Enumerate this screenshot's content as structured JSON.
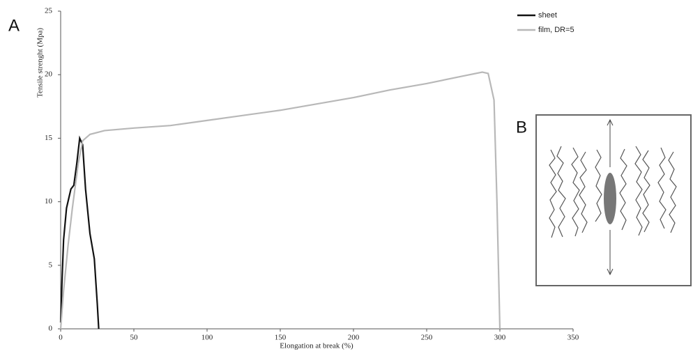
{
  "panel_a": "A",
  "panel_b": "B",
  "chart_data": {
    "type": "line",
    "x_label": "Elongation at break (%)",
    "y_label": "Tensile strenght (Mpa)",
    "xlim": [
      0,
      350
    ],
    "xticks": [
      0,
      50,
      100,
      150,
      200,
      250,
      300,
      350
    ],
    "ylim": [
      0,
      25
    ],
    "yticks": [
      0,
      5,
      10,
      15,
      20,
      25
    ],
    "legend": "top-right",
    "series": [
      {
        "name": "sheet",
        "color": "#111111",
        "x": [
          0,
          1,
          2,
          4,
          7,
          9,
          11,
          13,
          15,
          17,
          20,
          23,
          25,
          26
        ],
        "values": [
          0.5,
          4,
          7,
          9.5,
          11,
          11.3,
          13,
          15,
          14.5,
          11,
          7.5,
          5.5,
          2,
          0
        ]
      },
      {
        "name": "film, DR=5",
        "color": "#b8b8b8",
        "x": [
          0,
          2,
          5,
          8,
          12,
          15,
          20,
          30,
          50,
          75,
          100,
          125,
          150,
          175,
          200,
          225,
          250,
          275,
          288,
          292,
          296,
          298,
          300
        ],
        "values": [
          0,
          3,
          6.5,
          9.5,
          13,
          14.8,
          15.3,
          15.6,
          15.8,
          16,
          16.4,
          16.8,
          17.2,
          17.7,
          18.2,
          18.8,
          19.3,
          19.9,
          20.2,
          20.1,
          18,
          10,
          0
        ]
      }
    ]
  }
}
